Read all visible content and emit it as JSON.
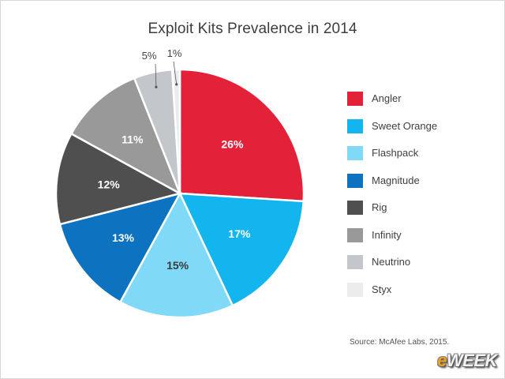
{
  "chart_data": {
    "type": "pie",
    "title": "Exploit Kits Prevalence in 2014",
    "slices": [
      {
        "label": "Angler",
        "value": 26,
        "display": "26%",
        "color": "#e3223a",
        "label_color": "#ffffff",
        "outside": false
      },
      {
        "label": "Sweet Orange",
        "value": 17,
        "display": "17%",
        "color": "#12b5ee",
        "label_color": "#ffffff",
        "outside": false
      },
      {
        "label": "Flashpack",
        "value": 15,
        "display": "15%",
        "color": "#7fd9f7",
        "label_color": "#3a3a3a",
        "outside": false
      },
      {
        "label": "Magnitude",
        "value": 13,
        "display": "13%",
        "color": "#0d72c0",
        "label_color": "#ffffff",
        "outside": false
      },
      {
        "label": "Rig",
        "value": 12,
        "display": "12%",
        "color": "#4f4f4f",
        "label_color": "#ffffff",
        "outside": false
      },
      {
        "label": "Infinity",
        "value": 11,
        "display": "11%",
        "color": "#999999",
        "label_color": "#ffffff",
        "outside": false
      },
      {
        "label": "Neutrino",
        "value": 5,
        "display": "5%",
        "color": "#c3c7cb",
        "label_color": "#444444",
        "outside": true
      },
      {
        "label": "Styx",
        "value": 1,
        "display": "1%",
        "color": "#ececec",
        "label_color": "#444444",
        "outside": true
      }
    ],
    "legend_position": "right"
  },
  "source": "Source: McAfee Labs, 2015.",
  "watermark": "eWEEK"
}
